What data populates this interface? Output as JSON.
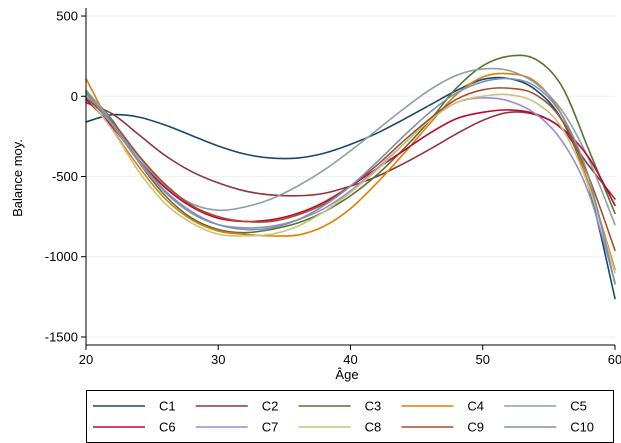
{
  "chart_data": {
    "type": "line",
    "title": "",
    "xlabel": "Âge",
    "ylabel": "Balance moy.",
    "xlim": [
      20,
      60
    ],
    "ylim": [
      -1550,
      550
    ],
    "xticks": [
      20,
      30,
      40,
      50,
      60
    ],
    "yticks": [
      500,
      0,
      -500,
      -1000,
      -1500
    ],
    "grid": "horizontal",
    "legend_position": "bottom",
    "legend_columns": 5,
    "x": [
      20,
      22,
      24,
      26,
      28,
      30,
      32,
      34,
      36,
      38,
      40,
      42,
      44,
      46,
      48,
      50,
      52,
      54,
      56,
      58,
      60
    ],
    "series": [
      {
        "name": "C1",
        "color": "#1a476f",
        "values": [
          -160,
          -115,
          -130,
          -180,
          -245,
          -310,
          -360,
          -385,
          -385,
          -355,
          -300,
          -230,
          -145,
          -55,
          35,
          105,
          110,
          40,
          -150,
          -560,
          -1260
        ]
      },
      {
        "name": "C2",
        "color": "#90353b",
        "values": [
          -40,
          -110,
          -240,
          -370,
          -470,
          -540,
          -590,
          -615,
          -620,
          -605,
          -560,
          -500,
          -420,
          -330,
          -235,
          -150,
          -100,
          -115,
          -205,
          -430,
          -640
        ]
      },
      {
        "name": "C3",
        "color": "#55752f",
        "values": [
          30,
          -150,
          -410,
          -620,
          -760,
          -830,
          -850,
          -830,
          -790,
          -720,
          -620,
          -490,
          -330,
          -150,
          50,
          190,
          250,
          230,
          60,
          -330,
          -730
        ]
      },
      {
        "name": "C4",
        "color": "#e37e00",
        "values": [
          110,
          -200,
          -440,
          -640,
          -770,
          -840,
          -860,
          -870,
          -865,
          -810,
          -700,
          -540,
          -360,
          -170,
          10,
          120,
          140,
          90,
          -120,
          -540,
          -1080
        ]
      },
      {
        "name": "C5",
        "color": "#8e9fa5",
        "values": [
          40,
          -160,
          -380,
          -560,
          -670,
          -710,
          -690,
          -640,
          -560,
          -460,
          -340,
          -210,
          -80,
          40,
          130,
          170,
          160,
          80,
          -90,
          -390,
          -800
        ]
      },
      {
        "name": "C6",
        "color": "#c10534",
        "values": [
          -20,
          -190,
          -400,
          -570,
          -690,
          -760,
          -780,
          -770,
          -730,
          -660,
          -560,
          -450,
          -340,
          -230,
          -140,
          -100,
          -85,
          -110,
          -200,
          -380,
          -680
        ]
      },
      {
        "name": "C7",
        "color": "#938dd2",
        "values": [
          10,
          -180,
          -410,
          -600,
          -730,
          -800,
          -820,
          -810,
          -770,
          -700,
          -590,
          -450,
          -300,
          -150,
          -40,
          -10,
          -30,
          -110,
          -280,
          -600,
          -1160
        ]
      },
      {
        "name": "C8",
        "color": "#cac27e",
        "values": [
          0,
          -210,
          -470,
          -670,
          -790,
          -860,
          -870,
          -860,
          -810,
          -720,
          -600,
          -460,
          -300,
          -150,
          -40,
          0,
          10,
          -40,
          -200,
          -560,
          -1100
        ]
      },
      {
        "name": "C9",
        "color": "#a0522d",
        "values": [
          -10,
          -160,
          -370,
          -550,
          -680,
          -750,
          -780,
          -780,
          -740,
          -670,
          -560,
          -430,
          -280,
          -140,
          -20,
          40,
          50,
          10,
          -150,
          -500,
          -960
        ]
      },
      {
        "name": "C10",
        "color": "#7b92a8",
        "values": [
          20,
          -170,
          -400,
          -590,
          -720,
          -800,
          -830,
          -820,
          -770,
          -680,
          -560,
          -410,
          -250,
          -100,
          20,
          90,
          110,
          60,
          -120,
          -500,
          -1170
        ]
      }
    ]
  }
}
